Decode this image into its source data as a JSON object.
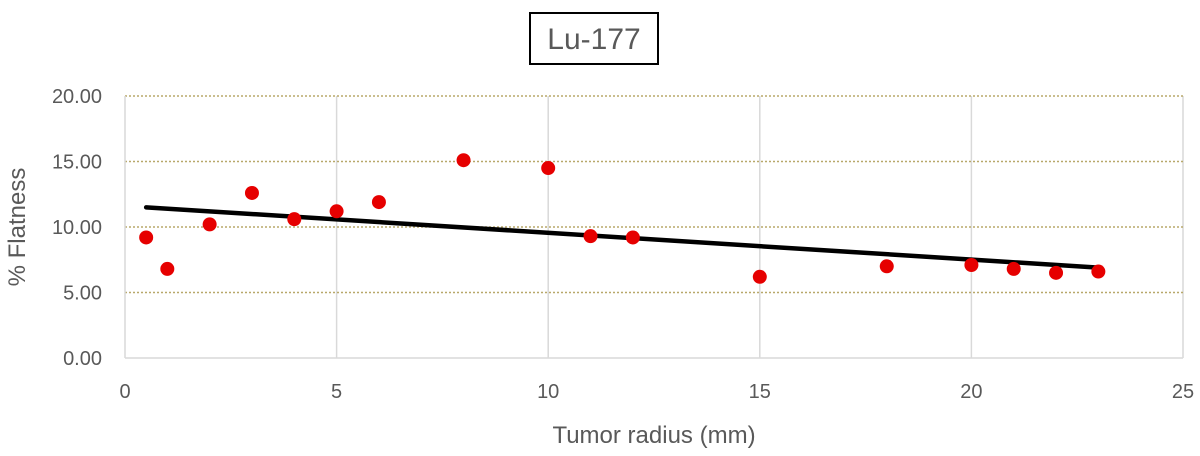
{
  "chart_data": {
    "type": "scatter",
    "title": "Lu-177",
    "xlabel": "Tumor radius (mm)",
    "ylabel": "% Flatness",
    "xlim": [
      0,
      25
    ],
    "ylim": [
      0,
      20
    ],
    "x_ticks": [
      "0",
      "5",
      "10",
      "15",
      "20",
      "25"
    ],
    "y_ticks": [
      "0.00",
      "5.00",
      "10.00",
      "15.00",
      "20.00"
    ],
    "x_tick_values": [
      0,
      5,
      10,
      15,
      20,
      25
    ],
    "y_tick_values": [
      0,
      5,
      10,
      15,
      20
    ],
    "grid": {
      "vertical": "solid",
      "horizontal": "dotted"
    },
    "legend": "none",
    "series": [
      {
        "marker_color": "#e60000",
        "points": [
          [
            0.5,
            9.2
          ],
          [
            1,
            6.8
          ],
          [
            2,
            10.2
          ],
          [
            3,
            12.6
          ],
          [
            4,
            10.6
          ],
          [
            5,
            11.2
          ],
          [
            6,
            11.9
          ],
          [
            8,
            15.1
          ],
          [
            10,
            14.5
          ],
          [
            11,
            9.3
          ],
          [
            12,
            9.2
          ],
          [
            15,
            6.2
          ],
          [
            18,
            7.0
          ],
          [
            20,
            7.1
          ],
          [
            21,
            6.8
          ],
          [
            22,
            6.5
          ],
          [
            23,
            6.6
          ]
        ]
      }
    ],
    "trendline": {
      "type": "linear",
      "color": "#000000",
      "x": [
        0.5,
        23
      ],
      "y": [
        11.5,
        6.9
      ]
    }
  }
}
